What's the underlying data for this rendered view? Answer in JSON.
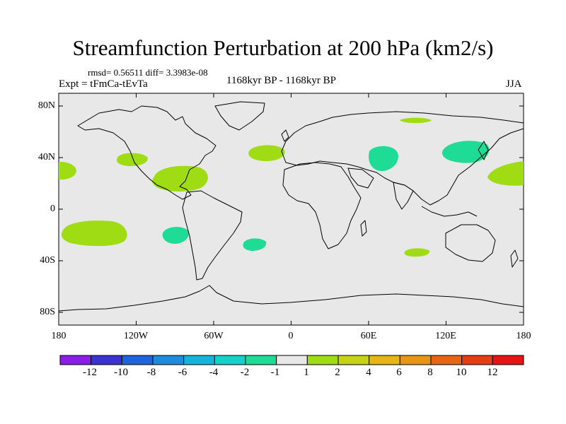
{
  "title": "Streamfunction Perturbation at 200 hPa (km2/s)",
  "stats": "rmsd= 0.56511  diff= 3.3983e-08",
  "experiment": "Expt = tFmCa-tEvTa",
  "period": "1168kyr BP - 1168kyr BP",
  "season": "JJA",
  "axes": {
    "y_ticks": [
      "80N",
      "40N",
      "0",
      "40S",
      "80S"
    ],
    "x_ticks": [
      "180",
      "120W",
      "60W",
      "0",
      "60E",
      "120E",
      "180"
    ]
  },
  "colorbar": {
    "labels": [
      "-12",
      "-10",
      "-8",
      "-6",
      "-4",
      "-2",
      "-1",
      "1",
      "2",
      "4",
      "6",
      "8",
      "10",
      "12"
    ],
    "colors": [
      "#8a1ee6",
      "#3c32d2",
      "#1e64dc",
      "#1e8cdc",
      "#14b4dc",
      "#14d2c8",
      "#1edc96",
      "#e8e8e8",
      "#a0dc14",
      "#c8d214",
      "#e6b414",
      "#e69614",
      "#e66414",
      "#e63c14",
      "#e61414"
    ]
  },
  "colors": {
    "ocean": "#e8e8e8",
    "positive": "#a0dc14",
    "negative": "#1edc96"
  }
}
